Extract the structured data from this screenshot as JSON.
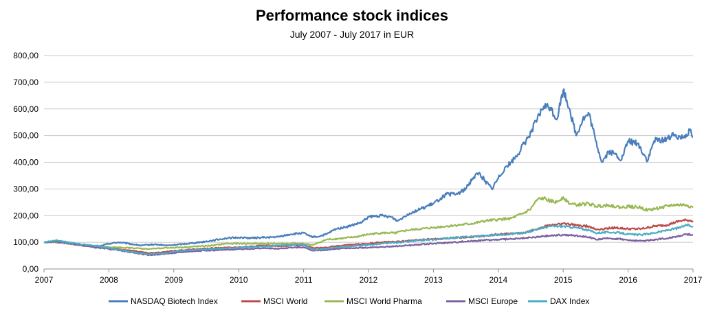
{
  "chart_data": {
    "type": "line",
    "title": "Performance stock indices",
    "subtitle": "July 2007 - July 2017 in EUR",
    "xlabel": "",
    "ylabel": "",
    "ylim": [
      0,
      800
    ],
    "xlim": [
      2007,
      2017
    ],
    "y_ticks": [
      "0,00",
      "100,00",
      "200,00",
      "300,00",
      "400,00",
      "500,00",
      "600,00",
      "700,00",
      "800,00"
    ],
    "x_ticks": [
      "2007",
      "2008",
      "2009",
      "2010",
      "2011",
      "2012",
      "2013",
      "2014",
      "2015",
      "2016",
      "2017"
    ],
    "grid": "horizontal",
    "legend_position": "bottom",
    "series": [
      {
        "name": "NASDAQ Biotech Index",
        "color": "#4a7ebb",
        "points": [
          [
            2007.0,
            100
          ],
          [
            2007.2,
            105
          ],
          [
            2007.4,
            98
          ],
          [
            2007.6,
            88
          ],
          [
            2007.8,
            82
          ],
          [
            2008.0,
            95
          ],
          [
            2008.15,
            100
          ],
          [
            2008.3,
            95
          ],
          [
            2008.5,
            88
          ],
          [
            2008.7,
            92
          ],
          [
            2008.9,
            88
          ],
          [
            2009.0,
            90
          ],
          [
            2009.2,
            95
          ],
          [
            2009.4,
            100
          ],
          [
            2009.6,
            107
          ],
          [
            2009.8,
            115
          ],
          [
            2010.0,
            118
          ],
          [
            2010.2,
            116
          ],
          [
            2010.4,
            118
          ],
          [
            2010.6,
            120
          ],
          [
            2010.8,
            130
          ],
          [
            2011.0,
            135
          ],
          [
            2011.1,
            122
          ],
          [
            2011.2,
            120
          ],
          [
            2011.35,
            130
          ],
          [
            2011.5,
            150
          ],
          [
            2011.7,
            160
          ],
          [
            2011.9,
            175
          ],
          [
            2012.0,
            195
          ],
          [
            2012.2,
            200
          ],
          [
            2012.35,
            195
          ],
          [
            2012.45,
            180
          ],
          [
            2012.6,
            205
          ],
          [
            2012.8,
            225
          ],
          [
            2013.0,
            245
          ],
          [
            2013.2,
            280
          ],
          [
            2013.35,
            280
          ],
          [
            2013.5,
            300
          ],
          [
            2013.6,
            340
          ],
          [
            2013.7,
            360
          ],
          [
            2013.8,
            330
          ],
          [
            2013.9,
            300
          ],
          [
            2014.0,
            340
          ],
          [
            2014.1,
            380
          ],
          [
            2014.2,
            400
          ],
          [
            2014.3,
            430
          ],
          [
            2014.45,
            490
          ],
          [
            2014.6,
            560
          ],
          [
            2014.7,
            610
          ],
          [
            2014.8,
            605
          ],
          [
            2014.9,
            560
          ],
          [
            2015.0,
            670
          ],
          [
            2015.1,
            600
          ],
          [
            2015.2,
            500
          ],
          [
            2015.3,
            560
          ],
          [
            2015.4,
            580
          ],
          [
            2015.5,
            480
          ],
          [
            2015.6,
            400
          ],
          [
            2015.7,
            440
          ],
          [
            2015.8,
            430
          ],
          [
            2015.9,
            410
          ],
          [
            2016.0,
            480
          ],
          [
            2016.15,
            470
          ],
          [
            2016.3,
            405
          ],
          [
            2016.4,
            480
          ],
          [
            2016.55,
            485
          ],
          [
            2016.7,
            500
          ],
          [
            2016.85,
            495
          ],
          [
            2016.95,
            520
          ],
          [
            2017.0,
            495
          ]
        ]
      },
      {
        "name": "MSCI World",
        "color": "#be4b48",
        "points": [
          [
            2007.0,
            100
          ],
          [
            2007.2,
            103
          ],
          [
            2007.4,
            95
          ],
          [
            2007.6,
            88
          ],
          [
            2007.8,
            85
          ],
          [
            2008.0,
            80
          ],
          [
            2008.2,
            72
          ],
          [
            2008.4,
            68
          ],
          [
            2008.6,
            60
          ],
          [
            2008.8,
            62
          ],
          [
            2009.0,
            68
          ],
          [
            2009.2,
            72
          ],
          [
            2009.4,
            75
          ],
          [
            2009.6,
            78
          ],
          [
            2009.8,
            80
          ],
          [
            2010.0,
            82
          ],
          [
            2010.2,
            85
          ],
          [
            2010.4,
            88
          ],
          [
            2010.6,
            85
          ],
          [
            2010.8,
            88
          ],
          [
            2011.0,
            90
          ],
          [
            2011.15,
            78
          ],
          [
            2011.3,
            80
          ],
          [
            2011.5,
            85
          ],
          [
            2011.7,
            90
          ],
          [
            2012.0,
            95
          ],
          [
            2012.2,
            100
          ],
          [
            2012.4,
            102
          ],
          [
            2012.6,
            105
          ],
          [
            2012.8,
            110
          ],
          [
            2013.0,
            112
          ],
          [
            2013.2,
            115
          ],
          [
            2013.4,
            118
          ],
          [
            2013.6,
            120
          ],
          [
            2013.8,
            125
          ],
          [
            2014.0,
            130
          ],
          [
            2014.2,
            132
          ],
          [
            2014.4,
            135
          ],
          [
            2014.6,
            150
          ],
          [
            2014.8,
            165
          ],
          [
            2015.0,
            170
          ],
          [
            2015.2,
            165
          ],
          [
            2015.4,
            160
          ],
          [
            2015.5,
            148
          ],
          [
            2015.6,
            150
          ],
          [
            2015.8,
            155
          ],
          [
            2016.0,
            150
          ],
          [
            2016.2,
            150
          ],
          [
            2016.4,
            160
          ],
          [
            2016.6,
            165
          ],
          [
            2016.8,
            180
          ],
          [
            2016.9,
            183
          ],
          [
            2017.0,
            180
          ]
        ]
      },
      {
        "name": "MSCI World Pharma",
        "color": "#98b954",
        "points": [
          [
            2007.0,
            100
          ],
          [
            2007.2,
            100
          ],
          [
            2007.4,
            95
          ],
          [
            2007.6,
            88
          ],
          [
            2007.8,
            85
          ],
          [
            2008.0,
            82
          ],
          [
            2008.2,
            80
          ],
          [
            2008.4,
            78
          ],
          [
            2008.6,
            75
          ],
          [
            2008.8,
            78
          ],
          [
            2009.0,
            80
          ],
          [
            2009.2,
            82
          ],
          [
            2009.4,
            85
          ],
          [
            2009.6,
            88
          ],
          [
            2009.8,
            95
          ],
          [
            2010.0,
            95
          ],
          [
            2010.2,
            95
          ],
          [
            2010.4,
            95
          ],
          [
            2010.6,
            95
          ],
          [
            2010.8,
            95
          ],
          [
            2011.0,
            95
          ],
          [
            2011.15,
            90
          ],
          [
            2011.35,
            110
          ],
          [
            2011.6,
            115
          ],
          [
            2011.8,
            120
          ],
          [
            2012.0,
            130
          ],
          [
            2012.2,
            135
          ],
          [
            2012.4,
            135
          ],
          [
            2012.6,
            145
          ],
          [
            2012.8,
            150
          ],
          [
            2013.0,
            155
          ],
          [
            2013.2,
            160
          ],
          [
            2013.4,
            165
          ],
          [
            2013.6,
            170
          ],
          [
            2013.8,
            180
          ],
          [
            2014.0,
            185
          ],
          [
            2014.2,
            190
          ],
          [
            2014.4,
            210
          ],
          [
            2014.5,
            225
          ],
          [
            2014.6,
            260
          ],
          [
            2014.7,
            265
          ],
          [
            2014.8,
            255
          ],
          [
            2014.9,
            250
          ],
          [
            2015.0,
            270
          ],
          [
            2015.1,
            245
          ],
          [
            2015.2,
            240
          ],
          [
            2015.4,
            245
          ],
          [
            2015.5,
            235
          ],
          [
            2015.7,
            240
          ],
          [
            2015.9,
            230
          ],
          [
            2016.0,
            235
          ],
          [
            2016.2,
            230
          ],
          [
            2016.3,
            220
          ],
          [
            2016.5,
            230
          ],
          [
            2016.7,
            240
          ],
          [
            2016.9,
            240
          ],
          [
            2017.0,
            230
          ]
        ]
      },
      {
        "name": "MSCI Europe",
        "color": "#7d60a0",
        "points": [
          [
            2007.0,
            100
          ],
          [
            2007.2,
            102
          ],
          [
            2007.4,
            95
          ],
          [
            2007.6,
            88
          ],
          [
            2007.8,
            80
          ],
          [
            2008.0,
            75
          ],
          [
            2008.2,
            68
          ],
          [
            2008.4,
            60
          ],
          [
            2008.6,
            52
          ],
          [
            2008.8,
            55
          ],
          [
            2009.0,
            60
          ],
          [
            2009.2,
            65
          ],
          [
            2009.4,
            68
          ],
          [
            2009.6,
            70
          ],
          [
            2009.8,
            72
          ],
          [
            2010.0,
            74
          ],
          [
            2010.2,
            76
          ],
          [
            2010.4,
            78
          ],
          [
            2010.6,
            76
          ],
          [
            2010.8,
            80
          ],
          [
            2011.0,
            82
          ],
          [
            2011.15,
            68
          ],
          [
            2011.3,
            70
          ],
          [
            2011.5,
            75
          ],
          [
            2011.7,
            78
          ],
          [
            2012.0,
            80
          ],
          [
            2012.2,
            82
          ],
          [
            2012.4,
            85
          ],
          [
            2012.6,
            88
          ],
          [
            2012.8,
            92
          ],
          [
            2013.0,
            95
          ],
          [
            2013.2,
            98
          ],
          [
            2013.4,
            102
          ],
          [
            2013.6,
            105
          ],
          [
            2013.8,
            108
          ],
          [
            2014.0,
            110
          ],
          [
            2014.2,
            112
          ],
          [
            2014.4,
            115
          ],
          [
            2014.6,
            120
          ],
          [
            2014.8,
            125
          ],
          [
            2015.0,
            128
          ],
          [
            2015.2,
            125
          ],
          [
            2015.4,
            120
          ],
          [
            2015.5,
            110
          ],
          [
            2015.7,
            115
          ],
          [
            2015.9,
            112
          ],
          [
            2016.0,
            108
          ],
          [
            2016.2,
            105
          ],
          [
            2016.4,
            110
          ],
          [
            2016.6,
            115
          ],
          [
            2016.8,
            125
          ],
          [
            2016.9,
            130
          ],
          [
            2017.0,
            128
          ]
        ]
      },
      {
        "name": "DAX Index",
        "color": "#4bacc6",
        "points": [
          [
            2007.0,
            100
          ],
          [
            2007.2,
            108
          ],
          [
            2007.4,
            98
          ],
          [
            2007.6,
            92
          ],
          [
            2007.8,
            88
          ],
          [
            2008.0,
            78
          ],
          [
            2008.2,
            70
          ],
          [
            2008.4,
            62
          ],
          [
            2008.6,
            55
          ],
          [
            2008.8,
            58
          ],
          [
            2009.0,
            65
          ],
          [
            2009.2,
            70
          ],
          [
            2009.4,
            72
          ],
          [
            2009.6,
            75
          ],
          [
            2009.8,
            78
          ],
          [
            2010.0,
            80
          ],
          [
            2010.2,
            82
          ],
          [
            2010.4,
            85
          ],
          [
            2010.6,
            88
          ],
          [
            2010.8,
            90
          ],
          [
            2011.0,
            92
          ],
          [
            2011.15,
            72
          ],
          [
            2011.3,
            75
          ],
          [
            2011.5,
            80
          ],
          [
            2011.7,
            85
          ],
          [
            2012.0,
            90
          ],
          [
            2012.2,
            95
          ],
          [
            2012.4,
            98
          ],
          [
            2012.6,
            102
          ],
          [
            2012.8,
            108
          ],
          [
            2013.0,
            110
          ],
          [
            2013.2,
            115
          ],
          [
            2013.4,
            118
          ],
          [
            2013.6,
            122
          ],
          [
            2013.8,
            125
          ],
          [
            2014.0,
            128
          ],
          [
            2014.2,
            132
          ],
          [
            2014.4,
            135
          ],
          [
            2014.6,
            150
          ],
          [
            2014.8,
            160
          ],
          [
            2015.0,
            160
          ],
          [
            2015.2,
            155
          ],
          [
            2015.4,
            145
          ],
          [
            2015.5,
            135
          ],
          [
            2015.7,
            138
          ],
          [
            2015.9,
            135
          ],
          [
            2016.0,
            130
          ],
          [
            2016.2,
            128
          ],
          [
            2016.4,
            135
          ],
          [
            2016.6,
            145
          ],
          [
            2016.8,
            155
          ],
          [
            2016.9,
            165
          ],
          [
            2017.0,
            160
          ]
        ]
      }
    ]
  }
}
